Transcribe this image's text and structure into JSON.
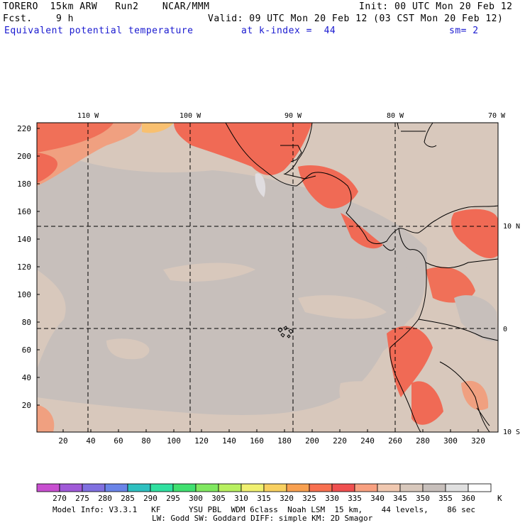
{
  "header": {
    "model": "TORERO  15km ARW   Run2    NCAR/MMM",
    "init": "Init: 00 UTC Mon 20 Feb 12",
    "fcst": "Fcst.    9 h",
    "valid": "Valid: 09 UTC Mon 20 Feb 12 (03 CST Mon 20 Feb 12)",
    "field": "Equivalent potential temperature",
    "level": "at k-index =  44",
    "smooth": "sm= 2"
  },
  "map": {
    "top_lon_labels": [
      "110 W",
      "100 W",
      "90 W",
      "80 W",
      "70 W"
    ],
    "right_lat_labels": [
      "10 N",
      "0",
      "10 S"
    ],
    "left_ticks": [
      "220",
      "200",
      "180",
      "160",
      "140",
      "120",
      "100",
      "80",
      "60",
      "40",
      "20"
    ],
    "bottom_ticks": [
      "20",
      "40",
      "60",
      "80",
      "100",
      "120",
      "140",
      "160",
      "180",
      "200",
      "220",
      "240",
      "260",
      "280",
      "300",
      "320"
    ],
    "background_color": "#d8c8bc",
    "ocean_color": "#c7bfbb"
  },
  "colorbar": {
    "labels": [
      "270",
      "275",
      "280",
      "285",
      "290",
      "295",
      "300",
      "305",
      "310",
      "315",
      "320",
      "325",
      "330",
      "335",
      "340",
      "345",
      "350",
      "355",
      "360"
    ],
    "unit": "K",
    "colors": [
      "#c84fd0",
      "#a05ad8",
      "#8070e0",
      "#6a84e8",
      "#2ec0c0",
      "#30e0a0",
      "#40e070",
      "#80e860",
      "#b8f060",
      "#f0f070",
      "#f8d060",
      "#f8a050",
      "#f87050",
      "#f05050",
      "#f8a080",
      "#f0c8b0",
      "#d8c8bc",
      "#c7bfbb",
      "#e0e0e0",
      "#ffffff"
    ]
  },
  "footer": {
    "line1": "Model Info: V3.3.1   KF      YSU PBL  WDM 6class  Noah LSM  15 km,    44 levels,    86 sec",
    "line2": "LW: Godd SW: Goddard DIFF: simple KM: 2D Smagor"
  }
}
